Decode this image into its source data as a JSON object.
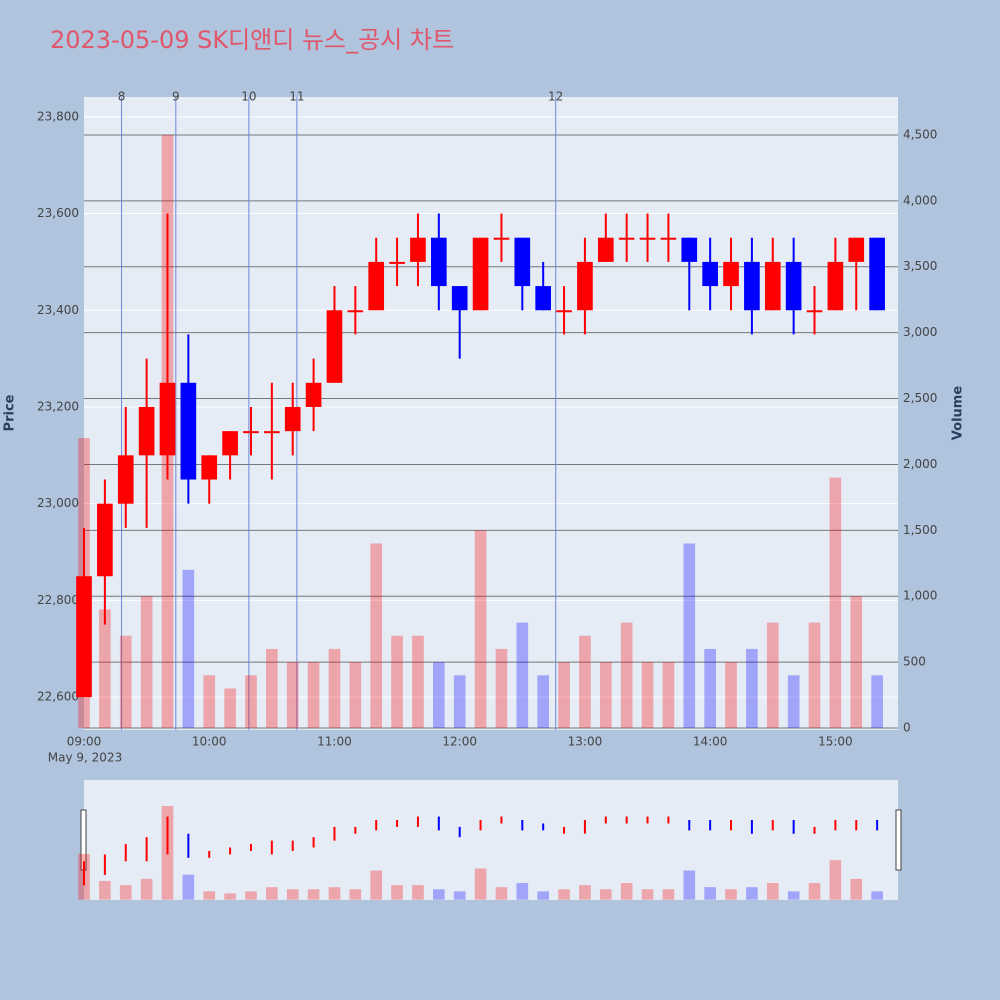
{
  "chart_data": {
    "type": "candlestick",
    "title": "2023-05-09 SK디앤디 뉴스_공시 차트",
    "y_title": "Price",
    "y2_title": "Volume",
    "x_date_label": "May 9, 2023",
    "x": [
      "09:00",
      "09:10",
      "09:20",
      "09:30",
      "09:40",
      "09:50",
      "10:00",
      "10:10",
      "10:20",
      "10:30",
      "10:40",
      "10:50",
      "11:00",
      "11:10",
      "11:20",
      "11:30",
      "11:40",
      "11:50",
      "12:00",
      "12:10",
      "12:20",
      "12:30",
      "12:40",
      "12:50",
      "13:00",
      "13:10",
      "13:20",
      "13:30",
      "13:40",
      "13:50",
      "14:00",
      "14:10",
      "14:20",
      "14:30",
      "14:40",
      "14:50",
      "15:00",
      "15:10",
      "15:20"
    ],
    "open": [
      22600,
      22850,
      23000,
      23100,
      23100,
      23250,
      23050,
      23100,
      23150,
      23150,
      23150,
      23200,
      23250,
      23400,
      23400,
      23500,
      23500,
      23550,
      23450,
      23400,
      23550,
      23550,
      23450,
      23400,
      23400,
      23500,
      23550,
      23550,
      23550,
      23550,
      23500,
      23450,
      23500,
      23400,
      23500,
      23400,
      23400,
      23500,
      23550
    ],
    "high": [
      22950,
      23050,
      23200,
      23300,
      23600,
      23350,
      23100,
      23150,
      23200,
      23250,
      23250,
      23300,
      23450,
      23450,
      23550,
      23550,
      23600,
      23600,
      23450,
      23550,
      23600,
      23550,
      23500,
      23450,
      23550,
      23600,
      23600,
      23600,
      23600,
      23550,
      23550,
      23550,
      23550,
      23550,
      23550,
      23450,
      23550,
      23550,
      23550
    ],
    "low": [
      22600,
      22750,
      22950,
      22950,
      23050,
      23000,
      23000,
      23050,
      23100,
      23050,
      23100,
      23150,
      23250,
      23350,
      23400,
      23450,
      23450,
      23400,
      23300,
      23400,
      23500,
      23400,
      23400,
      23350,
      23350,
      23500,
      23500,
      23500,
      23500,
      23400,
      23400,
      23400,
      23350,
      23400,
      23350,
      23350,
      23400,
      23400,
      23400
    ],
    "close": [
      22850,
      23000,
      23100,
      23200,
      23250,
      23050,
      23100,
      23150,
      23150,
      23150,
      23200,
      23250,
      23400,
      23400,
      23500,
      23500,
      23550,
      23450,
      23400,
      23550,
      23550,
      23450,
      23400,
      23400,
      23500,
      23550,
      23550,
      23550,
      23550,
      23500,
      23450,
      23500,
      23400,
      23500,
      23400,
      23400,
      23500,
      23550,
      23400
    ],
    "volume": [
      2200,
      900,
      700,
      1000,
      4500,
      1200,
      400,
      300,
      400,
      600,
      500,
      500,
      600,
      500,
      1400,
      700,
      700,
      500,
      400,
      1500,
      600,
      800,
      400,
      500,
      700,
      500,
      800,
      500,
      500,
      1400,
      600,
      500,
      600,
      800,
      400,
      800,
      1900,
      1000,
      400
    ],
    "up_color": "#ff0000",
    "down_color": "#0000ff",
    "xlim": [
      "09:00",
      "15:30"
    ],
    "xticks": [
      "09:00",
      "10:00",
      "11:00",
      "12:00",
      "13:00",
      "14:00",
      "15:00"
    ],
    "ylim": [
      22532,
      23841
    ],
    "yticks": [
      {
        "value": 22600,
        "label": "22,600"
      },
      {
        "value": 22800,
        "label": "22,800"
      },
      {
        "value": 23000,
        "label": "23,000"
      },
      {
        "value": 23200,
        "label": "23,200"
      },
      {
        "value": 23400,
        "label": "23,400"
      },
      {
        "value": 23600,
        "label": "23,600"
      },
      {
        "value": 23800,
        "label": "23,800"
      }
    ],
    "y2lim": [
      -15,
      4788
    ],
    "y2ticks": [
      0,
      500,
      {
        "value": 1000,
        "label": "1,000"
      },
      {
        "value": 1500,
        "label": "1,500"
      },
      {
        "value": 2000,
        "label": "2,000"
      },
      {
        "value": 2500,
        "label": "2,500"
      },
      {
        "value": 3000,
        "label": "3,000"
      },
      {
        "value": 3500,
        "label": "3,500"
      },
      {
        "value": 4000,
        "label": "4,000"
      },
      {
        "value": 4500,
        "label": "4,500"
      }
    ],
    "events": [
      {
        "x": "09:18",
        "label": "8"
      },
      {
        "x": "09:44",
        "label": "9"
      },
      {
        "x": "10:19",
        "label": "10"
      },
      {
        "x": "10:42",
        "label": "11"
      },
      {
        "x": "12:46",
        "label": "12"
      }
    ]
  }
}
